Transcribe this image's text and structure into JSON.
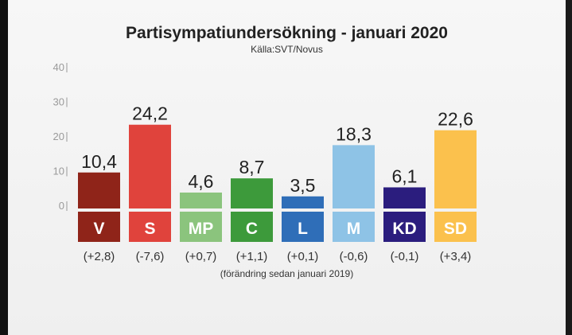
{
  "chart_data": {
    "type": "bar",
    "title": "Partisympatiundersökning - januari 2020",
    "subtitle": "Källa:SVT/Novus",
    "categories": [
      "V",
      "S",
      "MP",
      "C",
      "L",
      "M",
      "KD",
      "SD"
    ],
    "values": [
      10.4,
      24.2,
      4.6,
      8.7,
      3.5,
      18.3,
      6.1,
      22.6
    ],
    "value_labels": [
      "10,4",
      "24,2",
      "4,6",
      "8,7",
      "3,5",
      "18,3",
      "6,1",
      "22,6"
    ],
    "changes": [
      "(+2,8)",
      "(-7,6)",
      "(+0,7)",
      "(+1,1)",
      "(+0,1)",
      "(-0,6)",
      "(-0,1)",
      "(+3,4)"
    ],
    "colors": [
      "#8f2419",
      "#e0433c",
      "#8bc47d",
      "#3d9a3b",
      "#2f6eb8",
      "#8ec3e6",
      "#2b1d7e",
      "#fbc14d"
    ],
    "label_text_colors": [
      "#ffffff",
      "#ffffff",
      "#ffffff",
      "#ffffff",
      "#ffffff",
      "#ffffff",
      "#ffffff",
      "#ffffff"
    ],
    "yticks": [
      0,
      10,
      20,
      30,
      40
    ],
    "ylim": [
      0,
      40
    ],
    "xlabel": "",
    "ylabel": "",
    "footnote": "(förändring sedan januari 2019)"
  }
}
